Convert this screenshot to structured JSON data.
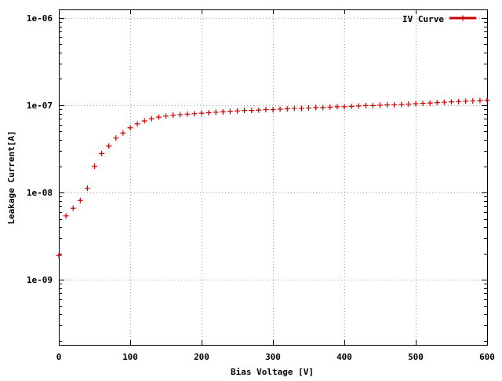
{
  "chart_data": {
    "type": "scatter",
    "title": "",
    "xlabel": "Bias Voltage [V]",
    "ylabel": "Leakage Current[A]",
    "xlim": [
      0,
      600
    ],
    "ylim": [
      1.8e-10,
      1.25e-06
    ],
    "yscale": "log",
    "grid": true,
    "legend_position": "top-right",
    "x_ticks": [
      0,
      100,
      200,
      300,
      400,
      500,
      600
    ],
    "x_tick_labels": [
      "0",
      "100",
      "200",
      "300",
      "400",
      "500",
      "600"
    ],
    "y_ticks": [
      1e-09,
      1e-08,
      1e-07,
      1e-06
    ],
    "y_tick_labels": [
      "1e-09",
      "1e-08",
      "1e-07",
      "1e-06"
    ],
    "series": [
      {
        "name": "IV Curve",
        "color": "#cc0000",
        "marker": "plus",
        "x": [
          0,
          10,
          20,
          30,
          40,
          50,
          60,
          70,
          80,
          90,
          100,
          110,
          120,
          130,
          140,
          150,
          160,
          170,
          180,
          190,
          200,
          210,
          220,
          230,
          240,
          250,
          260,
          270,
          280,
          290,
          300,
          310,
          320,
          330,
          340,
          350,
          360,
          370,
          380,
          390,
          400,
          410,
          420,
          430,
          440,
          450,
          460,
          470,
          480,
          490,
          500,
          510,
          520,
          530,
          540,
          550,
          560,
          570,
          580,
          590,
          600
        ],
        "y": [
          1.9e-09,
          5.4e-09,
          6.6e-09,
          8.1e-09,
          1.12e-08,
          2e-08,
          2.8e-08,
          3.4e-08,
          4.2e-08,
          4.8e-08,
          5.5e-08,
          6.1e-08,
          6.6e-08,
          7e-08,
          7.3e-08,
          7.5e-08,
          7.7e-08,
          7.8e-08,
          7.9e-08,
          8e-08,
          8.1e-08,
          8.2e-08,
          8.3e-08,
          8.4e-08,
          8.5e-08,
          8.6e-08,
          8.7e-08,
          8.7e-08,
          8.8e-08,
          8.9e-08,
          8.9e-08,
          9e-08,
          9.1e-08,
          9.2e-08,
          9.2e-08,
          9.3e-08,
          9.4e-08,
          9.4e-08,
          9.5e-08,
          9.6e-08,
          9.6e-08,
          9.7e-08,
          9.8e-08,
          9.9e-08,
          9.9e-08,
          1e-07,
          1.01e-07,
          1.01e-07,
          1.02e-07,
          1.03e-07,
          1.04e-07,
          1.05e-07,
          1.06e-07,
          1.07e-07,
          1.08e-07,
          1.09e-07,
          1.1e-07,
          1.11e-07,
          1.12e-07,
          1.13e-07,
          1.14e-07
        ]
      }
    ]
  }
}
